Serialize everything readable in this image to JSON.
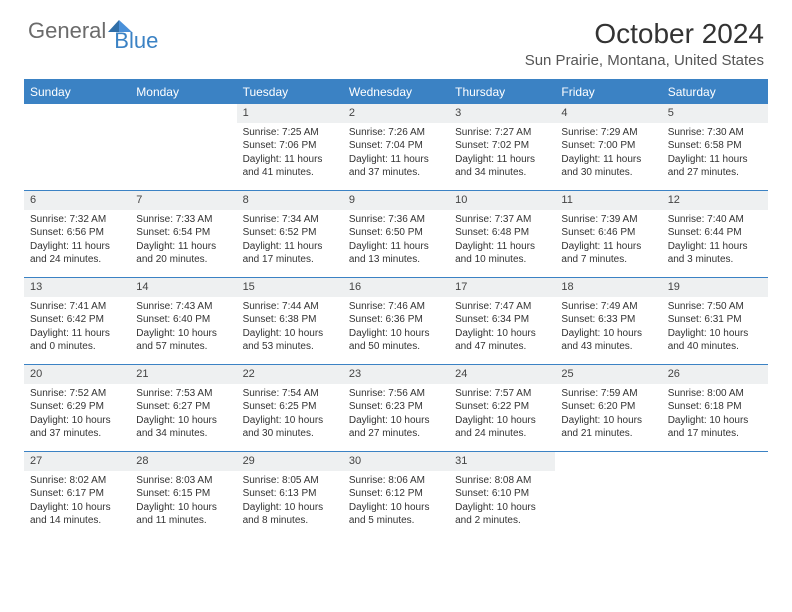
{
  "brand": {
    "part1": "General",
    "part2": "Blue"
  },
  "title": "October 2024",
  "location": "Sun Prairie, Montana, United States",
  "colors": {
    "accent": "#3b82c4",
    "header_bg": "#3b82c4",
    "header_text": "#ffffff",
    "daynum_bg": "#eef0f1",
    "text": "#333333",
    "rule": "#3b82c4"
  },
  "day_names": [
    "Sunday",
    "Monday",
    "Tuesday",
    "Wednesday",
    "Thursday",
    "Friday",
    "Saturday"
  ],
  "weeks": [
    [
      null,
      null,
      {
        "day": "1",
        "sunrise": "Sunrise: 7:25 AM",
        "sunset": "Sunset: 7:06 PM",
        "daylight": "Daylight: 11 hours and 41 minutes."
      },
      {
        "day": "2",
        "sunrise": "Sunrise: 7:26 AM",
        "sunset": "Sunset: 7:04 PM",
        "daylight": "Daylight: 11 hours and 37 minutes."
      },
      {
        "day": "3",
        "sunrise": "Sunrise: 7:27 AM",
        "sunset": "Sunset: 7:02 PM",
        "daylight": "Daylight: 11 hours and 34 minutes."
      },
      {
        "day": "4",
        "sunrise": "Sunrise: 7:29 AM",
        "sunset": "Sunset: 7:00 PM",
        "daylight": "Daylight: 11 hours and 30 minutes."
      },
      {
        "day": "5",
        "sunrise": "Sunrise: 7:30 AM",
        "sunset": "Sunset: 6:58 PM",
        "daylight": "Daylight: 11 hours and 27 minutes."
      }
    ],
    [
      {
        "day": "6",
        "sunrise": "Sunrise: 7:32 AM",
        "sunset": "Sunset: 6:56 PM",
        "daylight": "Daylight: 11 hours and 24 minutes."
      },
      {
        "day": "7",
        "sunrise": "Sunrise: 7:33 AM",
        "sunset": "Sunset: 6:54 PM",
        "daylight": "Daylight: 11 hours and 20 minutes."
      },
      {
        "day": "8",
        "sunrise": "Sunrise: 7:34 AM",
        "sunset": "Sunset: 6:52 PM",
        "daylight": "Daylight: 11 hours and 17 minutes."
      },
      {
        "day": "9",
        "sunrise": "Sunrise: 7:36 AM",
        "sunset": "Sunset: 6:50 PM",
        "daylight": "Daylight: 11 hours and 13 minutes."
      },
      {
        "day": "10",
        "sunrise": "Sunrise: 7:37 AM",
        "sunset": "Sunset: 6:48 PM",
        "daylight": "Daylight: 11 hours and 10 minutes."
      },
      {
        "day": "11",
        "sunrise": "Sunrise: 7:39 AM",
        "sunset": "Sunset: 6:46 PM",
        "daylight": "Daylight: 11 hours and 7 minutes."
      },
      {
        "day": "12",
        "sunrise": "Sunrise: 7:40 AM",
        "sunset": "Sunset: 6:44 PM",
        "daylight": "Daylight: 11 hours and 3 minutes."
      }
    ],
    [
      {
        "day": "13",
        "sunrise": "Sunrise: 7:41 AM",
        "sunset": "Sunset: 6:42 PM",
        "daylight": "Daylight: 11 hours and 0 minutes."
      },
      {
        "day": "14",
        "sunrise": "Sunrise: 7:43 AM",
        "sunset": "Sunset: 6:40 PM",
        "daylight": "Daylight: 10 hours and 57 minutes."
      },
      {
        "day": "15",
        "sunrise": "Sunrise: 7:44 AM",
        "sunset": "Sunset: 6:38 PM",
        "daylight": "Daylight: 10 hours and 53 minutes."
      },
      {
        "day": "16",
        "sunrise": "Sunrise: 7:46 AM",
        "sunset": "Sunset: 6:36 PM",
        "daylight": "Daylight: 10 hours and 50 minutes."
      },
      {
        "day": "17",
        "sunrise": "Sunrise: 7:47 AM",
        "sunset": "Sunset: 6:34 PM",
        "daylight": "Daylight: 10 hours and 47 minutes."
      },
      {
        "day": "18",
        "sunrise": "Sunrise: 7:49 AM",
        "sunset": "Sunset: 6:33 PM",
        "daylight": "Daylight: 10 hours and 43 minutes."
      },
      {
        "day": "19",
        "sunrise": "Sunrise: 7:50 AM",
        "sunset": "Sunset: 6:31 PM",
        "daylight": "Daylight: 10 hours and 40 minutes."
      }
    ],
    [
      {
        "day": "20",
        "sunrise": "Sunrise: 7:52 AM",
        "sunset": "Sunset: 6:29 PM",
        "daylight": "Daylight: 10 hours and 37 minutes."
      },
      {
        "day": "21",
        "sunrise": "Sunrise: 7:53 AM",
        "sunset": "Sunset: 6:27 PM",
        "daylight": "Daylight: 10 hours and 34 minutes."
      },
      {
        "day": "22",
        "sunrise": "Sunrise: 7:54 AM",
        "sunset": "Sunset: 6:25 PM",
        "daylight": "Daylight: 10 hours and 30 minutes."
      },
      {
        "day": "23",
        "sunrise": "Sunrise: 7:56 AM",
        "sunset": "Sunset: 6:23 PM",
        "daylight": "Daylight: 10 hours and 27 minutes."
      },
      {
        "day": "24",
        "sunrise": "Sunrise: 7:57 AM",
        "sunset": "Sunset: 6:22 PM",
        "daylight": "Daylight: 10 hours and 24 minutes."
      },
      {
        "day": "25",
        "sunrise": "Sunrise: 7:59 AM",
        "sunset": "Sunset: 6:20 PM",
        "daylight": "Daylight: 10 hours and 21 minutes."
      },
      {
        "day": "26",
        "sunrise": "Sunrise: 8:00 AM",
        "sunset": "Sunset: 6:18 PM",
        "daylight": "Daylight: 10 hours and 17 minutes."
      }
    ],
    [
      {
        "day": "27",
        "sunrise": "Sunrise: 8:02 AM",
        "sunset": "Sunset: 6:17 PM",
        "daylight": "Daylight: 10 hours and 14 minutes."
      },
      {
        "day": "28",
        "sunrise": "Sunrise: 8:03 AM",
        "sunset": "Sunset: 6:15 PM",
        "daylight": "Daylight: 10 hours and 11 minutes."
      },
      {
        "day": "29",
        "sunrise": "Sunrise: 8:05 AM",
        "sunset": "Sunset: 6:13 PM",
        "daylight": "Daylight: 10 hours and 8 minutes."
      },
      {
        "day": "30",
        "sunrise": "Sunrise: 8:06 AM",
        "sunset": "Sunset: 6:12 PM",
        "daylight": "Daylight: 10 hours and 5 minutes."
      },
      {
        "day": "31",
        "sunrise": "Sunrise: 8:08 AM",
        "sunset": "Sunset: 6:10 PM",
        "daylight": "Daylight: 10 hours and 2 minutes."
      },
      null,
      null
    ]
  ]
}
